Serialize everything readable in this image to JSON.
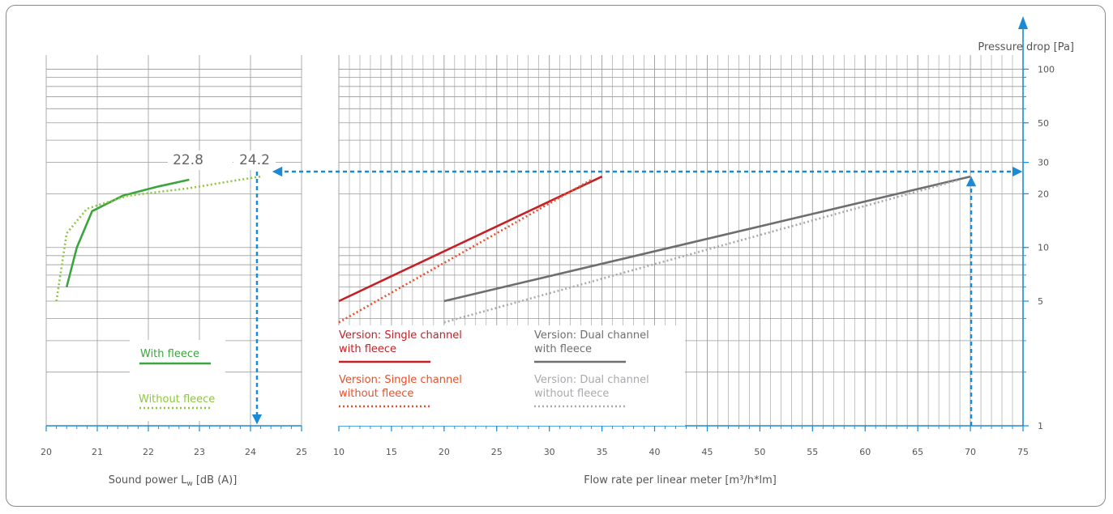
{
  "chart_data": [
    {
      "id": "sound",
      "type": "line",
      "xlabel": "Sound power L",
      "xlabel_sub": "w",
      "xlabel_tail": " [dB (A)]",
      "xlim": [
        20,
        25
      ],
      "ylim": [
        1,
        120
      ],
      "yscale": "log",
      "x_ticks": [
        "20",
        "21",
        "22",
        "23",
        "24",
        "25"
      ],
      "grid": true,
      "series": [
        {
          "name": "With fleece",
          "style": "solid",
          "color": "#3aa53c",
          "points": [
            [
              20.4,
              6
            ],
            [
              20.6,
              10
            ],
            [
              20.9,
              16
            ],
            [
              21.5,
              19.5
            ],
            [
              22.2,
              22
            ],
            [
              22.8,
              24
            ]
          ]
        },
        {
          "name": "Without fleece",
          "style": "dotted",
          "color": "#8dc63f",
          "points": [
            [
              20.2,
              5
            ],
            [
              20.4,
              12
            ],
            [
              20.8,
              16.5
            ],
            [
              21.6,
              19.5
            ],
            [
              22.8,
              21.5
            ],
            [
              23.8,
              24
            ],
            [
              24.2,
              25
            ]
          ]
        }
      ],
      "value_labels": [
        "22.8",
        "24.2"
      ],
      "legend_position": "bottom-right"
    },
    {
      "id": "flow",
      "type": "line",
      "xlabel": "Flow rate per linear meter [m³/h*lm]",
      "ylabel": "Pressure drop [Pa]",
      "xlim": [
        10,
        75
      ],
      "ylim": [
        1,
        120
      ],
      "yscale": "log",
      "x_ticks": [
        "10",
        "15",
        "20",
        "25",
        "30",
        "35",
        "40",
        "45",
        "50",
        "55",
        "60",
        "65",
        "70",
        "75"
      ],
      "y_ticks": [
        "1",
        "5",
        "10",
        "20",
        "30",
        "50",
        "100"
      ],
      "grid": true,
      "series": [
        {
          "name": "Version: Single channel with fleece",
          "style": "solid",
          "color": "#c42026",
          "points": [
            [
              10,
              5
            ],
            [
              35,
              25
            ]
          ]
        },
        {
          "name": "Version: Single channel without fleece",
          "style": "dotted",
          "color": "#e8502a",
          "points": [
            [
              10,
              3.8
            ],
            [
              34,
              24
            ]
          ]
        },
        {
          "name": "Version: Dual channel with fleece",
          "style": "solid",
          "color": "#6d6e71",
          "points": [
            [
              20,
              5
            ],
            [
              70,
              25
            ]
          ]
        },
        {
          "name": "Version: Dual channel without fleece",
          "style": "dotted",
          "color": "#a7a9ac",
          "points": [
            [
              20,
              3.8
            ],
            [
              69,
              24
            ]
          ]
        }
      ],
      "legend_position": "bottom-left"
    }
  ],
  "colors": {
    "guide_arrows": "#1a8ad4",
    "axis": "#1a8ad4",
    "grid": "#9a9a9a"
  },
  "legend": {
    "with_fleece": "With fleece",
    "without_fleece": "Without fleece",
    "single_with_1": "Version: Single channel",
    "single_with_2": "with fleece",
    "single_without_1": "Version: Single channel",
    "single_without_2": "without fleece",
    "dual_with_1": "Version: Dual channel",
    "dual_with_2": "with fleece",
    "dual_without_1": "Version: Dual channel",
    "dual_without_2": "without fleece"
  }
}
